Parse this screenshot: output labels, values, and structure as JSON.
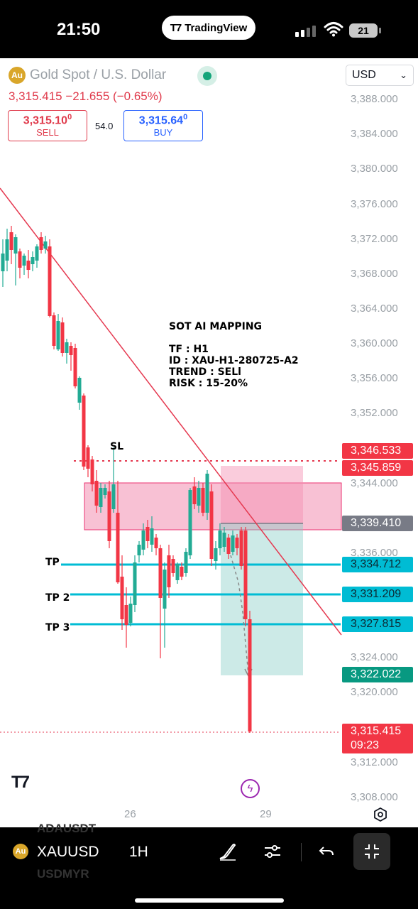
{
  "status_bar": {
    "time": "21:50",
    "app_pill": "TradingView",
    "battery": "21"
  },
  "header": {
    "title": "Gold Spot / U.S. Dollar",
    "currency": "USD",
    "last_price": "3,315.415",
    "change": "−21.655",
    "change_pct": "(−0.65%)",
    "sell_price": "3,315.10",
    "sell_price_sup": "0",
    "sell_label": "SELL",
    "spread": "54.0",
    "buy_price": "3,315.64",
    "buy_price_sup": "0",
    "buy_label": "BUY"
  },
  "price_axis": {
    "labels": [
      "3,388.000",
      "3,384.000",
      "3,380.000",
      "3,376.000",
      "3,372.000",
      "3,368.000",
      "3,364.000",
      "3,360.000",
      "3,356.000",
      "3,352.000",
      "3,344.000",
      "3,336.000",
      "3,324.000",
      "3,320.000",
      "3,312.000",
      "3,308.000"
    ]
  },
  "price_tags": {
    "sl_top": "3,346.533",
    "sl_bottom": "3,345.859",
    "entry": "3,339.410",
    "tp1": "3,334.712",
    "tp2": "3,331.209",
    "tp3": "3,327.815",
    "target": "3,322.022",
    "last": "3,315.415",
    "countdown": "09:23"
  },
  "annotations": {
    "mapping_title": "SOT AI MAPPING",
    "tf": "TF : H1",
    "id": "ID : XAU-H1-280725-A2",
    "trend": "TREND : SELl",
    "risk": "RISK : 15-20%",
    "sl": "SL",
    "tp1": "TP",
    "tp2": "TP 2",
    "tp3": "TP 3"
  },
  "time_axis": {
    "labels": [
      "26",
      "29"
    ]
  },
  "toolbar": {
    "symbol": "XAUUSD",
    "interval": "1H",
    "ghost_above": "ADAUSDT",
    "ghost_below": "USDMYR"
  },
  "colors": {
    "bull": "#22ab94",
    "bear": "#f23645",
    "tp_line": "#00bcd4",
    "trend_line": "#e53950",
    "zone": "#f48fb1",
    "entry_tag": "#787b86",
    "target_tag": "#089981"
  },
  "icons": [
    "gold-coin-icon",
    "live-status-icon",
    "chevron-down-icon",
    "tradingview-logo-icon",
    "flash-icon",
    "settings-icon",
    "draw-brush-icon",
    "indicators-icon",
    "undo-icon",
    "fullscreen-icon"
  ]
}
